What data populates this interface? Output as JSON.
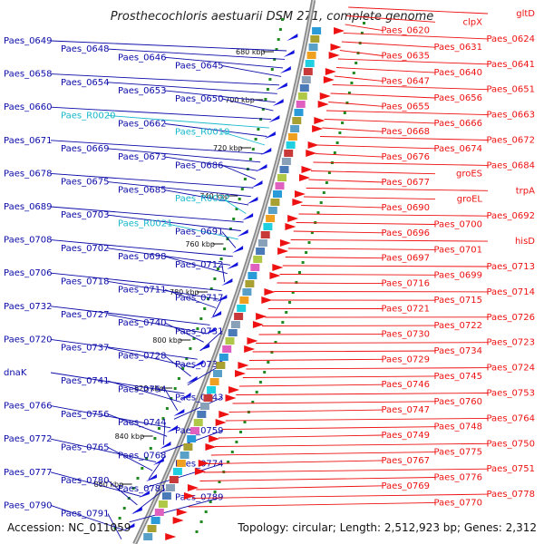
{
  "title": "Prosthecochloris aestuarii DSM 271, complete genome",
  "accession": "Accession: NC_011059",
  "topology": "Topology: circular; Length: 2,512,923 bp; Genes: 2,312",
  "colors": {
    "left_label": "#0a0aa8",
    "rna_label": "#18b8cc",
    "right_label": "#e01010",
    "backbone": "#8a8a8a",
    "ruler_tick": "#1f8a1f",
    "arrow_blue": "#1111dd",
    "arrow_red": "#ee1111"
  },
  "kbp_labels": [
    "680 kbp",
    "700 kbp",
    "720 kbp",
    "740 kbp",
    "760 kbp",
    "780 kbp",
    "800 kbp",
    "820 kbp",
    "840 kbp",
    "860 kbp"
  ],
  "left_labels": [
    {
      "text": "Paes_0649",
      "kind": "gene"
    },
    {
      "text": "Paes_0648",
      "kind": "gene"
    },
    {
      "text": "Paes_0646",
      "kind": "gene"
    },
    {
      "text": "Paes_0645",
      "kind": "gene"
    },
    {
      "text": "Paes_0658",
      "kind": "gene"
    },
    {
      "text": "Paes_0654",
      "kind": "gene"
    },
    {
      "text": "Paes_0653",
      "kind": "gene"
    },
    {
      "text": "Paes_0650",
      "kind": "gene"
    },
    {
      "text": "Paes_0660",
      "kind": "gene"
    },
    {
      "text": "Paes_R0020",
      "kind": "rna"
    },
    {
      "text": "Paes_0662",
      "kind": "gene"
    },
    {
      "text": "Paes_R0019",
      "kind": "rna"
    },
    {
      "text": "Paes_0671",
      "kind": "gene"
    },
    {
      "text": "Paes_0669",
      "kind": "gene"
    },
    {
      "text": "Paes_0673",
      "kind": "gene"
    },
    {
      "text": "Paes_0686",
      "kind": "gene"
    },
    {
      "text": "Paes_0678",
      "kind": "gene"
    },
    {
      "text": "Paes_0675",
      "kind": "gene"
    },
    {
      "text": "Paes_0685",
      "kind": "gene"
    },
    {
      "text": "Paes_R0022",
      "kind": "rna"
    },
    {
      "text": "Paes_0689",
      "kind": "gene"
    },
    {
      "text": "Paes_0703",
      "kind": "gene"
    },
    {
      "text": "Paes_R0021",
      "kind": "rna"
    },
    {
      "text": "Paes_0691",
      "kind": "gene"
    },
    {
      "text": "Paes_0708",
      "kind": "gene"
    },
    {
      "text": "Paes_0702",
      "kind": "gene"
    },
    {
      "text": "Paes_0698",
      "kind": "gene"
    },
    {
      "text": "Paes_0712",
      "kind": "gene"
    },
    {
      "text": "Paes_0706",
      "kind": "gene"
    },
    {
      "text": "Paes_0718",
      "kind": "gene"
    },
    {
      "text": "Paes_0711",
      "kind": "gene"
    },
    {
      "text": "Paes_0717",
      "kind": "gene"
    },
    {
      "text": "Paes_0732",
      "kind": "gene"
    },
    {
      "text": "Paes_0727",
      "kind": "gene"
    },
    {
      "text": "Paes_0740",
      "kind": "gene"
    },
    {
      "text": "Paes_0731",
      "kind": "gene"
    },
    {
      "text": "Paes_0720",
      "kind": "gene"
    },
    {
      "text": "Paes_0737",
      "kind": "gene"
    },
    {
      "text": "Paes_0728",
      "kind": "gene"
    },
    {
      "text": "Paes_0736",
      "kind": "gene"
    },
    {
      "text": "dnaK",
      "kind": "gene"
    },
    {
      "text": "Paes_0741",
      "kind": "gene"
    },
    {
      "text": "Paes_0754",
      "kind": "gene"
    },
    {
      "text": "Paes_0743",
      "kind": "gene"
    },
    {
      "text": "Paes_0766",
      "kind": "gene"
    },
    {
      "text": "Paes_0756",
      "kind": "gene"
    },
    {
      "text": "Paes_0744",
      "kind": "gene"
    },
    {
      "text": "Paes_0759",
      "kind": "gene"
    },
    {
      "text": "Paes_0772",
      "kind": "gene"
    },
    {
      "text": "Paes_0765",
      "kind": "gene"
    },
    {
      "text": "Paes_0768",
      "kind": "gene"
    },
    {
      "text": "Paes_0774",
      "kind": "gene"
    },
    {
      "text": "Paes_0777",
      "kind": "gene"
    },
    {
      "text": "Paes_0780",
      "kind": "gene"
    },
    {
      "text": "Paes_0781",
      "kind": "gene"
    },
    {
      "text": "Paes_0789",
      "kind": "gene"
    },
    {
      "text": "Paes_0790",
      "kind": "gene"
    },
    {
      "text": "Paes_0791",
      "kind": "gene"
    }
  ],
  "right_labels": [
    "gltD",
    "clpX",
    "Paes_0620",
    "Paes_0624",
    "Paes_0631",
    "Paes_0635",
    "Paes_0641",
    "Paes_0640",
    "Paes_0647",
    "Paes_0651",
    "Paes_0656",
    "Paes_0655",
    "Paes_0663",
    "Paes_0666",
    "Paes_0668",
    "Paes_0672",
    "Paes_0674",
    "Paes_0676",
    "Paes_0684",
    "groES",
    "Paes_0677",
    "trpA",
    "groEL",
    "Paes_0690",
    "Paes_0692",
    "Paes_0700",
    "Paes_0696",
    "hisD",
    "Paes_0701",
    "Paes_0697",
    "Paes_0713",
    "Paes_0699",
    "Paes_0716",
    "Paes_0714",
    "Paes_0715",
    "Paes_0721",
    "Paes_0726",
    "Paes_0722",
    "Paes_0730",
    "Paes_0723",
    "Paes_0734",
    "Paes_0729",
    "Paes_0724",
    "Paes_0745",
    "Paes_0746",
    "Paes_0753",
    "Paes_0760",
    "Paes_0747",
    "Paes_0764",
    "Paes_0748",
    "Paes_0749",
    "Paes_0750",
    "Paes_0775",
    "Paes_0767",
    "Paes_0751",
    "Paes_0776",
    "Paes_0769",
    "Paes_0778",
    "Paes_0770"
  ]
}
